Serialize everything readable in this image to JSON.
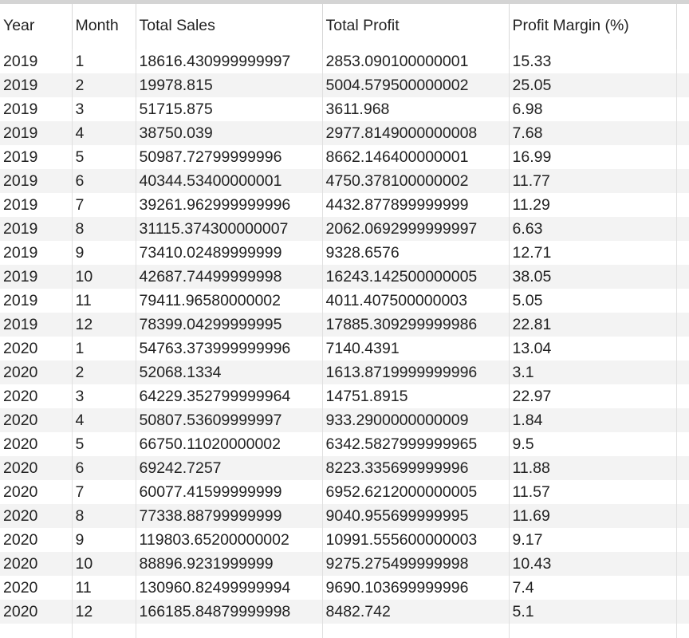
{
  "columns": [
    "Year",
    "Month",
    "Total Sales",
    "Total Profit",
    "Profit Margin (%)"
  ],
  "rows": [
    [
      "2019",
      "1",
      "18616.430999999997",
      "2853.090100000001",
      "15.33"
    ],
    [
      "2019",
      "2",
      "19978.815",
      "5004.579500000002",
      "25.05"
    ],
    [
      "2019",
      "3",
      "51715.875",
      "3611.968",
      "6.98"
    ],
    [
      "2019",
      "4",
      "38750.039",
      "2977.8149000000008",
      "7.68"
    ],
    [
      "2019",
      "5",
      "50987.72799999996",
      "8662.146400000001",
      "16.99"
    ],
    [
      "2019",
      "6",
      "40344.53400000001",
      "4750.378100000002",
      "11.77"
    ],
    [
      "2019",
      "7",
      "39261.962999999996",
      "4432.877899999999",
      "11.29"
    ],
    [
      "2019",
      "8",
      "31115.374300000007",
      "2062.0692999999997",
      "6.63"
    ],
    [
      "2019",
      "9",
      "73410.02489999999",
      "9328.6576",
      "12.71"
    ],
    [
      "2019",
      "10",
      "42687.74499999998",
      "16243.142500000005",
      "38.05"
    ],
    [
      "2019",
      "11",
      "79411.96580000002",
      "4011.407500000003",
      "5.05"
    ],
    [
      "2019",
      "12",
      "78399.04299999995",
      "17885.309299999986",
      "22.81"
    ],
    [
      "2020",
      "1",
      "54763.373999999996",
      "7140.4391",
      "13.04"
    ],
    [
      "2020",
      "2",
      "52068.1334",
      "1613.8719999999996",
      "3.1"
    ],
    [
      "2020",
      "3",
      "64229.352799999964",
      "14751.8915",
      "22.97"
    ],
    [
      "2020",
      "4",
      "50807.53609999997",
      "933.2900000000009",
      "1.84"
    ],
    [
      "2020",
      "5",
      "66750.11020000002",
      "6342.5827999999965",
      "9.5"
    ],
    [
      "2020",
      "6",
      "69242.7257",
      "8223.335699999996",
      "11.88"
    ],
    [
      "2020",
      "7",
      "60077.41599999999",
      "6952.6212000000005",
      "11.57"
    ],
    [
      "2020",
      "8",
      "77338.88799999999",
      "9040.955699999995",
      "11.69"
    ],
    [
      "2020",
      "9",
      "119803.65200000002",
      "10991.555600000003",
      "9.17"
    ],
    [
      "2020",
      "10",
      "88896.9231999999",
      "9275.275499999998",
      "10.43"
    ],
    [
      "2020",
      "11",
      "130960.82499999994",
      "9690.103699999996",
      "7.4"
    ],
    [
      "2020",
      "12",
      "166185.84879999998",
      "8482.742",
      "5.1"
    ]
  ]
}
